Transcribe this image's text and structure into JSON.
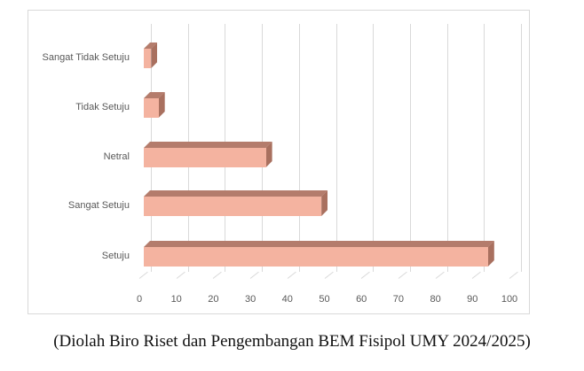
{
  "chart_data": {
    "type": "bar",
    "orientation": "horizontal",
    "style": "3d-clustered-bar",
    "title": "",
    "xlabel": "",
    "ylabel": "",
    "categories": [
      "Setuju",
      "Sangat Setuju",
      "Netral",
      "Tidak Setuju",
      "Sangat Tidak Setuju"
    ],
    "values": [
      93,
      48,
      33,
      4,
      2
    ],
    "xlim": [
      0,
      100
    ],
    "x_ticks": [
      "0",
      "10",
      "20",
      "30",
      "40",
      "50",
      "60",
      "70",
      "80",
      "90",
      "100"
    ],
    "grid": true,
    "legend": null,
    "bar_color": "#f4b3a0",
    "bar_shade_color": "#b47c6c"
  },
  "caption": "(Diolah Biro Riset dan Pengembangan BEM Fisipol UMY 2024/2025)"
}
